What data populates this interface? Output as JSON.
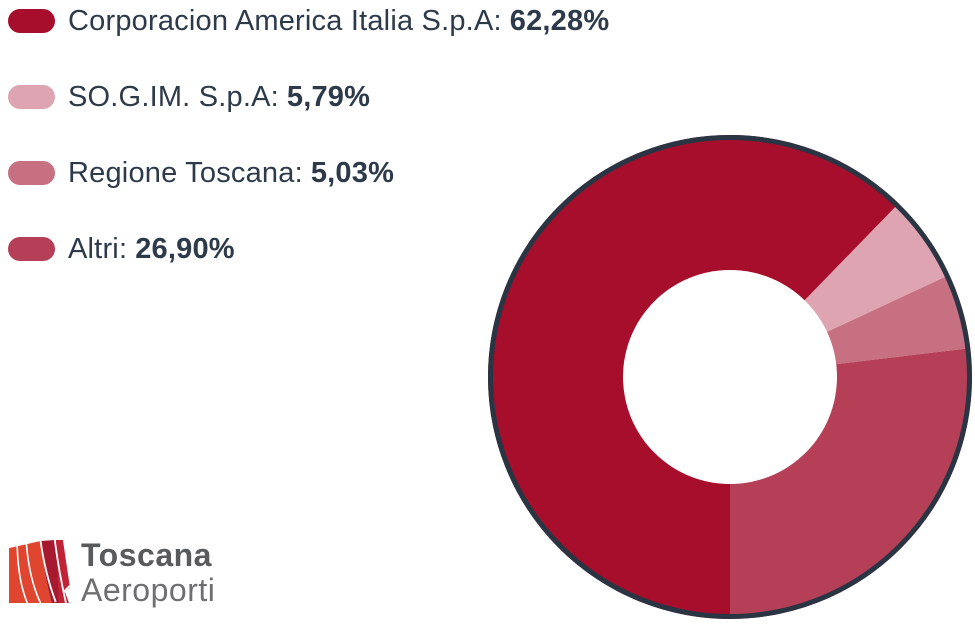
{
  "legend": {
    "items": [
      {
        "label": "Corporacion America Italia S.p.A:",
        "value": "62,28%"
      },
      {
        "label": "SO.G.IM. S.p.A:",
        "value": "5,79%"
      },
      {
        "label": "Regione Toscana:",
        "value": "5,03%"
      },
      {
        "label": "Altri:",
        "value": "26,90%"
      }
    ],
    "text_color": "#2D3A49"
  },
  "chart_data": {
    "type": "pie",
    "subtype": "donut",
    "labels": [
      "Corporacion America Italia S.p.A",
      "SO.G.IM. S.p.A",
      "Regione Toscana",
      "Altri"
    ],
    "values": [
      62.28,
      5.79,
      5.03,
      26.9
    ],
    "value_labels": [
      "62,28%",
      "5,79%",
      "5,03%",
      "26,90%"
    ],
    "colors": [
      "#A60E2C",
      "#DFA4B1",
      "#C77082",
      "#B63F58"
    ],
    "ring_border_color": "#2A3544",
    "hole_color": "#FFFFFF",
    "start_angle": 180,
    "direction": "clockwise",
    "legend_position": "top-left",
    "title": ""
  },
  "logo": {
    "line1": "Toscana",
    "line2": "Aeroporti",
    "colors": {
      "bright": "#E0462F",
      "dark": "#A6192E",
      "crimson": "#C22235",
      "text_primary": "#595A5C",
      "text_secondary": "#6E6F71"
    }
  }
}
